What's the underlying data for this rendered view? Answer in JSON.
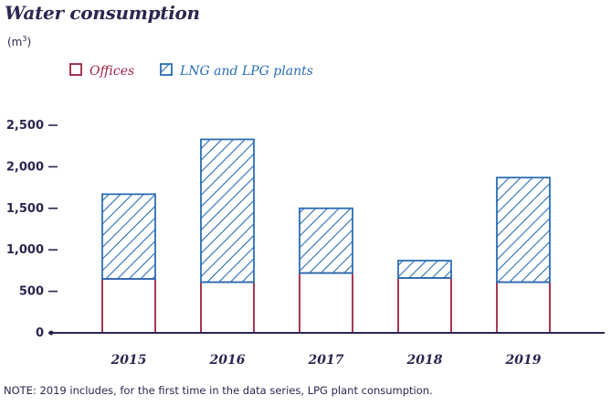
{
  "title": "Water consumption",
  "unit": {
    "base": "(m",
    "sup": "3",
    "close": ")"
  },
  "note": "NOTE: 2019 includes, for the first time in the data series, LPG plant consumption.",
  "colors": {
    "offices": "#9b2340",
    "plants": "#2a6db5",
    "text": "#2a2750",
    "axis": "#2a2750"
  },
  "chart_data": {
    "type": "bar",
    "stacked": true,
    "categories": [
      "2015",
      "2016",
      "2017",
      "2018",
      "2019"
    ],
    "series": [
      {
        "name": "Offices",
        "values": [
          650,
          610,
          720,
          660,
          610
        ]
      },
      {
        "name": "LNG and LPG plants",
        "values": [
          1020,
          1720,
          780,
          210,
          1260
        ]
      }
    ],
    "yticks": [
      "0",
      "500",
      "1,000",
      "1,500",
      "2,000",
      "2,500"
    ],
    "ylim": [
      0,
      2500
    ],
    "legend": "top-left",
    "grid": false
  }
}
